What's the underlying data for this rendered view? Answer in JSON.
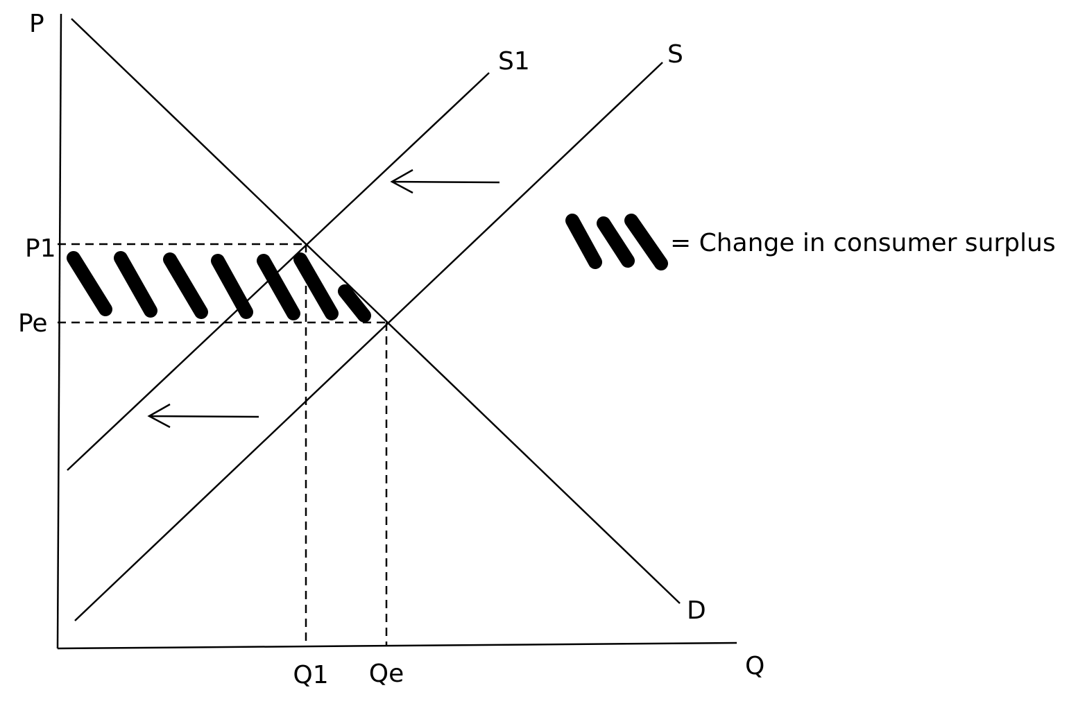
{
  "axes": {
    "y_label": "P",
    "x_label": "Q"
  },
  "curves": [
    {
      "label": "S1"
    },
    {
      "label": "S"
    },
    {
      "label": "D"
    }
  ],
  "price_levels": [
    "P1",
    "Pe"
  ],
  "quantity_levels": [
    "Q1",
    "Qe"
  ],
  "legend": {
    "text": "= Change in consumer surplus"
  }
}
